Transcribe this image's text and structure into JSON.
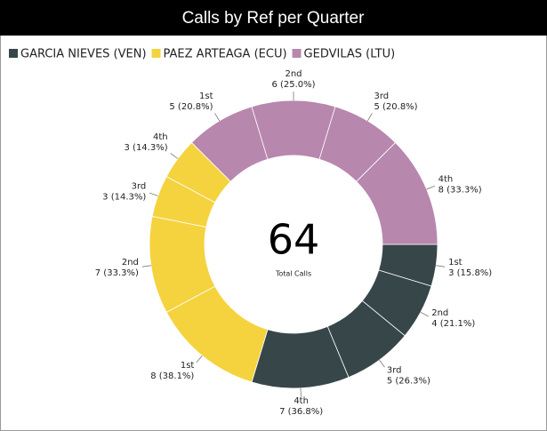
{
  "chart_data": {
    "type": "donut",
    "title": "Calls by Ref per Quarter",
    "center_value": 64,
    "center_label": "Total Calls",
    "series": [
      {
        "name": "GARCIA NIEVES (VEN)",
        "color": "#374649",
        "categories": [
          "1st",
          "2nd",
          "3rd",
          "4th"
        ],
        "values": [
          3,
          4,
          5,
          7
        ],
        "value_labels": [
          "3 (15.8%)",
          "4 (21.1%)",
          "5 (26.3%)",
          "7 (36.8%)"
        ]
      },
      {
        "name": "PAEZ ARTEAGA (ECU)",
        "color": "#f5d33f",
        "categories": [
          "1st",
          "2nd",
          "3rd",
          "4th"
        ],
        "values": [
          8,
          7,
          3,
          3
        ],
        "value_labels": [
          "8 (38.1%)",
          "7 (33.3%)",
          "3 (14.3%)",
          "3 (14.3%)"
        ]
      },
      {
        "name": "GEDVILAS (LTU)",
        "color": "#b887ad",
        "categories": [
          "1st",
          "2nd",
          "3rd",
          "4th"
        ],
        "values": [
          5,
          6,
          5,
          8
        ],
        "value_labels": [
          "5 (20.8%)",
          "6 (25.0%)",
          "5 (20.8%)",
          "8 (33.3%)"
        ]
      }
    ],
    "legend": "top-left"
  }
}
